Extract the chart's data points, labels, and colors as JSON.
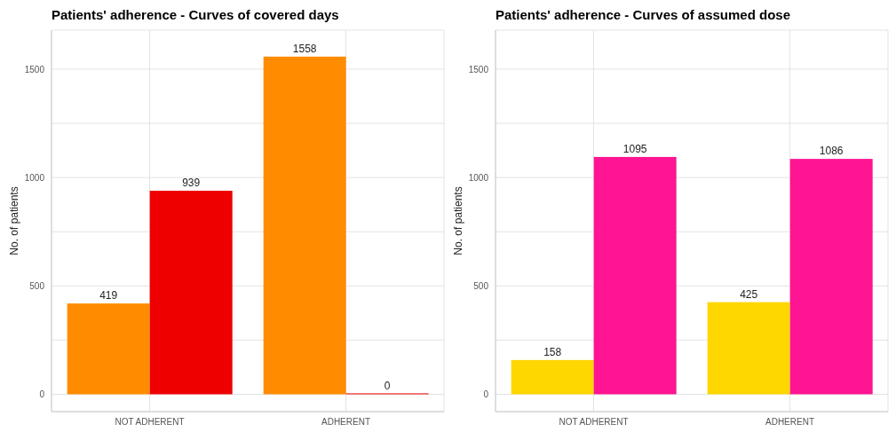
{
  "chart_data": [
    {
      "type": "bar",
      "title": "Patients' adherence - Curves of covered days",
      "ylabel": "No. of patients",
      "categories": [
        "NOT ADHERENT",
        "ADHERENT"
      ],
      "series": [
        {
          "color": "#ff8c00",
          "values": [
            419,
            1558
          ]
        },
        {
          "color": "#ee0000",
          "values": [
            939,
            0
          ]
        }
      ],
      "ylim": [
        -80,
        1680
      ],
      "yticks": [
        0,
        {
          "value": 250,
          "label": null
        },
        500,
        {
          "value": 750,
          "label": null
        },
        1000,
        {
          "value": 1250,
          "label": null
        },
        1500
      ],
      "grid": true,
      "data_labels": true,
      "legend": false
    },
    {
      "type": "bar",
      "title": "Patients' adherence - Curves of assumed dose",
      "ylabel": "No. of patients",
      "categories": [
        "NOT ADHERENT",
        "ADHERENT"
      ],
      "series": [
        {
          "color": "#ffd700",
          "values": [
            158,
            425
          ]
        },
        {
          "color": "#ff1493",
          "values": [
            1095,
            1086
          ]
        }
      ],
      "ylim": [
        -80,
        1680
      ],
      "yticks": [
        0,
        {
          "value": 250,
          "label": null
        },
        500,
        {
          "value": 750,
          "label": null
        },
        1000,
        {
          "value": 1250,
          "label": null
        },
        1500
      ],
      "grid": true,
      "data_labels": true,
      "legend": false
    }
  ]
}
